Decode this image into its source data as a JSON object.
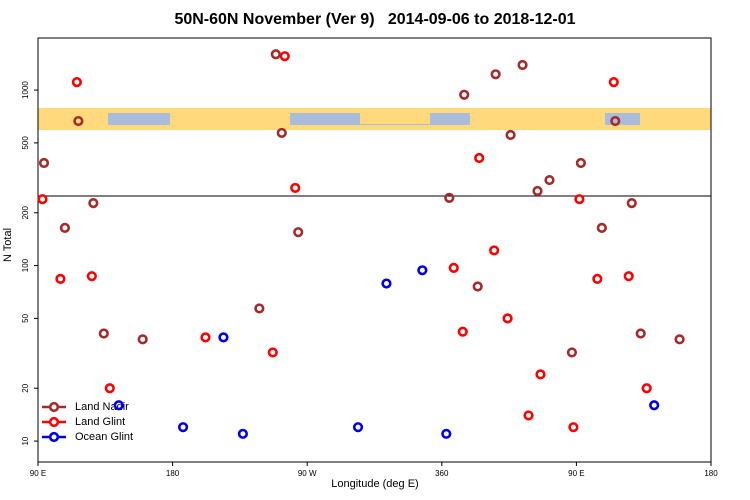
{
  "chart_data": {
    "type": "scatter",
    "title": "50N-60N November (Ver 9)   2014-09-06 to 2018-12-01",
    "x_label": "Longitude (deg E)",
    "y_label": "N Total",
    "log_y": true,
    "legend": "bottom-left",
    "xlim": [
      90,
      540
    ],
    "xticks": [
      {
        "value": 90,
        "label": "90 E"
      },
      180,
      {
        "value": 270,
        "label": "90 W"
      },
      360,
      {
        "value": 450,
        "label": "90 E"
      },
      {
        "value": 540,
        "label": "180"
      }
    ],
    "ylim": [
      7.6,
      1980
    ],
    "yticks": [
      10,
      20,
      50,
      100,
      200,
      500,
      1000
    ],
    "series": [
      {
        "name": "Land Nadir",
        "color": "#a52a2a",
        "x": [
          94,
          108,
          127,
          117,
          134,
          160,
          238,
          249,
          253,
          264,
          365,
          375,
          384,
          396,
          406,
          414,
          424,
          432,
          447,
          453,
          467,
          476,
          487,
          493,
          519
        ],
        "values": [
          384,
          164,
          227,
          666,
          41,
          38,
          57,
          1600,
          570,
          155,
          243,
          940,
          76,
          1230,
          555,
          1390,
          266,
          307,
          32,
          384,
          164,
          666,
          227,
          41,
          38
        ]
      },
      {
        "name": "Land Glint",
        "color": "#ff0000",
        "x": [
          93,
          105,
          116,
          126,
          138,
          202,
          247,
          255,
          262,
          368,
          374,
          385,
          395,
          404,
          418,
          426,
          448,
          452,
          464,
          475,
          485,
          497
        ],
        "values": [
          239,
          84,
          1110,
          87,
          20,
          39,
          32,
          1560,
          277,
          97,
          42,
          410,
          122,
          50,
          14,
          24,
          12,
          239,
          84,
          1110,
          87,
          20
        ]
      },
      {
        "name": "Ocean Glint",
        "color": "#0000ee",
        "x": [
          144,
          187,
          214,
          227,
          304,
          323,
          347,
          363,
          502
        ],
        "values": [
          16,
          12,
          39,
          11,
          12,
          79,
          94,
          11,
          16
        ]
      }
    ]
  }
}
